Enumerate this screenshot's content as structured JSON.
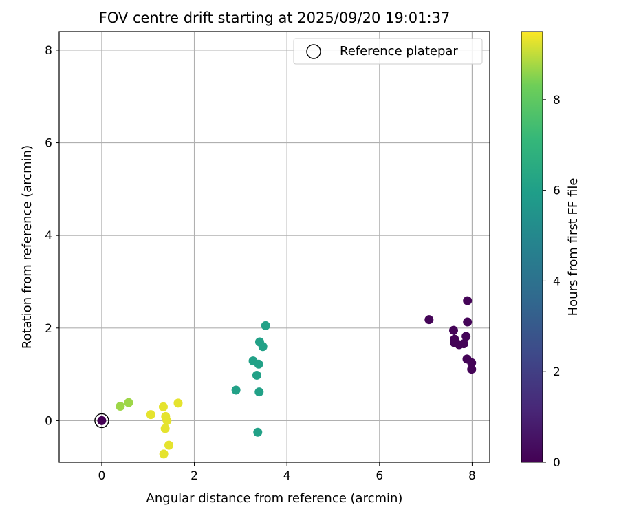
{
  "chart_data": {
    "type": "scatter",
    "title": "FOV centre drift starting at 2025/09/20 19:01:37",
    "xlabel": "Angular distance from reference (arcmin)",
    "ylabel": "Rotation from reference (arcmin)",
    "xlim": [
      -0.92,
      8.38
    ],
    "ylim": [
      -0.9,
      8.4
    ],
    "xticks": [
      0,
      2,
      4,
      6,
      8
    ],
    "yticks": [
      0,
      2,
      4,
      6,
      8
    ],
    "grid": true,
    "legend": {
      "position": "top-right",
      "entries": [
        "Reference platepar"
      ]
    },
    "colorbar": {
      "label": "Hours from first FF file",
      "range": [
        0,
        9.5
      ],
      "ticks": [
        0,
        2,
        4,
        6,
        8
      ],
      "colormap": "viridis"
    },
    "reference_point": {
      "x": 0,
      "y": 0
    },
    "points": [
      {
        "x": 0.0,
        "y": 0.0,
        "hours": 0.0
      },
      {
        "x": 7.07,
        "y": 2.18,
        "hours": 0.1
      },
      {
        "x": 7.9,
        "y": 2.59,
        "hours": 0.1
      },
      {
        "x": 7.9,
        "y": 2.13,
        "hours": 0.1
      },
      {
        "x": 7.6,
        "y": 1.95,
        "hours": 0.1
      },
      {
        "x": 7.87,
        "y": 1.82,
        "hours": 0.1
      },
      {
        "x": 7.62,
        "y": 1.76,
        "hours": 0.1
      },
      {
        "x": 7.62,
        "y": 1.68,
        "hours": 0.1
      },
      {
        "x": 7.72,
        "y": 1.64,
        "hours": 0.1
      },
      {
        "x": 7.82,
        "y": 1.66,
        "hours": 0.1
      },
      {
        "x": 7.89,
        "y": 1.33,
        "hours": 0.1
      },
      {
        "x": 7.99,
        "y": 1.25,
        "hours": 0.1
      },
      {
        "x": 7.99,
        "y": 1.11,
        "hours": 0.1
      },
      {
        "x": 3.54,
        "y": 2.05,
        "hours": 6.1
      },
      {
        "x": 3.41,
        "y": 1.7,
        "hours": 6.1
      },
      {
        "x": 3.48,
        "y": 1.6,
        "hours": 6.1
      },
      {
        "x": 3.27,
        "y": 1.29,
        "hours": 6.1
      },
      {
        "x": 3.39,
        "y": 1.22,
        "hours": 6.1
      },
      {
        "x": 3.35,
        "y": 0.98,
        "hours": 6.1
      },
      {
        "x": 2.9,
        "y": 0.66,
        "hours": 6.1
      },
      {
        "x": 3.4,
        "y": 0.62,
        "hours": 6.1
      },
      {
        "x": 3.37,
        "y": -0.25,
        "hours": 6.1
      },
      {
        "x": 0.4,
        "y": 0.31,
        "hours": 8.7
      },
      {
        "x": 0.58,
        "y": 0.39,
        "hours": 8.7
      },
      {
        "x": 1.06,
        "y": 0.13,
        "hours": 9.3
      },
      {
        "x": 1.33,
        "y": 0.3,
        "hours": 9.3
      },
      {
        "x": 1.65,
        "y": 0.38,
        "hours": 9.3
      },
      {
        "x": 1.38,
        "y": 0.09,
        "hours": 9.3
      },
      {
        "x": 1.41,
        "y": 0.0,
        "hours": 9.3
      },
      {
        "x": 1.37,
        "y": -0.17,
        "hours": 9.3
      },
      {
        "x": 1.45,
        "y": -0.53,
        "hours": 9.3
      },
      {
        "x": 1.34,
        "y": -0.72,
        "hours": 9.3
      }
    ]
  }
}
